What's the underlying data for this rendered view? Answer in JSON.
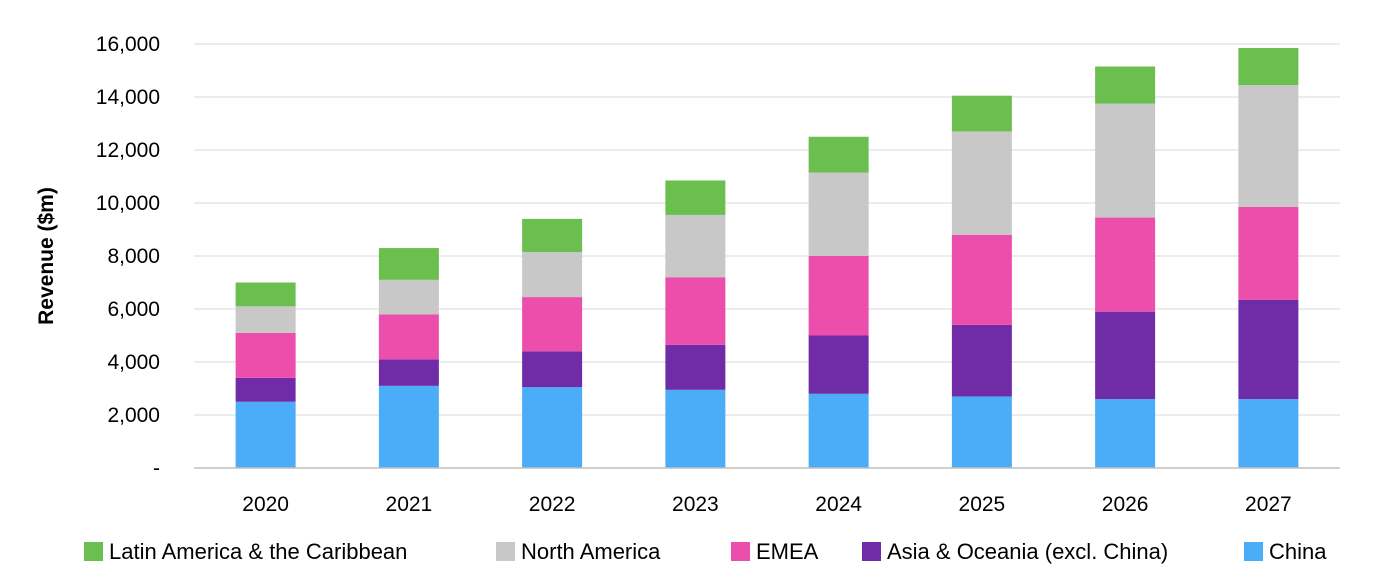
{
  "chart_data": {
    "type": "bar",
    "stacked": true,
    "title": "",
    "xlabel": "",
    "ylabel": "Revenue ($m)",
    "categories": [
      "2020",
      "2021",
      "2022",
      "2023",
      "2024",
      "2025",
      "2026",
      "2027"
    ],
    "ylim": [
      0,
      16000
    ],
    "y_ticks": [
      0,
      2000,
      4000,
      6000,
      8000,
      10000,
      12000,
      14000,
      16000
    ],
    "y_tick_labels": [
      "-",
      "2,000",
      "4,000",
      "6,000",
      "8,000",
      "10,000",
      "12,000",
      "14,000",
      "16,000"
    ],
    "grid": true,
    "legend_position": "bottom",
    "series": [
      {
        "name": "China",
        "color": "#4bacf7",
        "values": [
          2500,
          3100,
          3050,
          2950,
          2800,
          2700,
          2600,
          2600
        ]
      },
      {
        "name": "Asia & Oceania (excl. China)",
        "color": "#702ca6",
        "values": [
          900,
          1000,
          1350,
          1700,
          2200,
          2700,
          3300,
          3750
        ]
      },
      {
        "name": "EMEA",
        "color": "#ec4eab",
        "values": [
          1700,
          1700,
          2050,
          2550,
          3000,
          3400,
          3550,
          3500
        ]
      },
      {
        "name": "North America",
        "color": "#c8c8c8",
        "values": [
          1000,
          1300,
          1700,
          2350,
          3150,
          3900,
          4300,
          4600
        ]
      },
      {
        "name": "Latin America & the Caribbean",
        "color": "#6abf4f",
        "values": [
          900,
          1200,
          1250,
          1300,
          1350,
          1350,
          1400,
          1400
        ]
      }
    ],
    "legend_order": [
      "Latin America & the Caribbean",
      "North America",
      "EMEA",
      "Asia & Oceania (excl. China)",
      "China"
    ]
  }
}
